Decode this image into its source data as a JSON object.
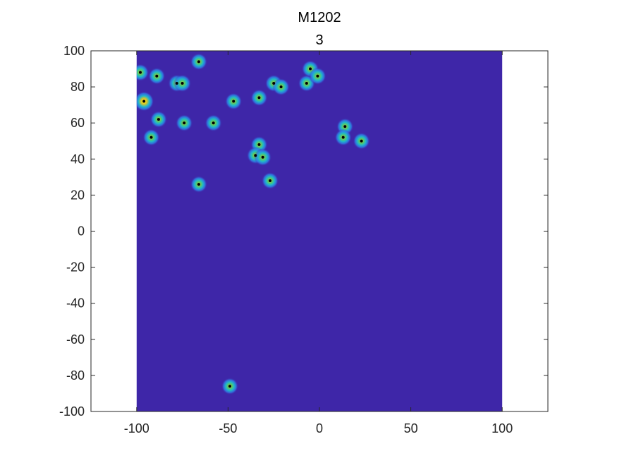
{
  "chart_data": {
    "type": "heatmap",
    "title": "M1202",
    "subtitle": "3",
    "xlabel": "",
    "ylabel": "",
    "xlim": [
      -125,
      125
    ],
    "ylim": [
      -100,
      100
    ],
    "data_extent": {
      "x": [
        -100,
        100
      ],
      "y": [
        -100,
        100
      ]
    },
    "xticks": [
      -100,
      -50,
      0,
      50,
      100
    ],
    "yticks": [
      -100,
      -80,
      -60,
      -40,
      -20,
      0,
      20,
      40,
      60,
      80,
      100
    ],
    "xtick_labels": [
      "-100",
      "-50",
      "0",
      "50",
      "100"
    ],
    "ytick_labels": [
      "-100",
      "-80",
      "-60",
      "-40",
      "-20",
      "0",
      "20",
      "40",
      "60",
      "80",
      "100"
    ],
    "background_color": "#3e26a8",
    "colormap": [
      "#3e26a8",
      "#2e7fe8",
      "#1fb9c8",
      "#5ec962",
      "#d6c22c",
      "#f9fb0e"
    ],
    "grid": false,
    "points": [
      {
        "x": -98,
        "y": 88,
        "intensity": 0.55
      },
      {
        "x": -89,
        "y": 86,
        "intensity": 0.5
      },
      {
        "x": -66,
        "y": 94,
        "intensity": 0.5
      },
      {
        "x": -96,
        "y": 72,
        "intensity": 1.0
      },
      {
        "x": -88,
        "y": 62,
        "intensity": 0.5
      },
      {
        "x": -92,
        "y": 52,
        "intensity": 0.5
      },
      {
        "x": -78,
        "y": 82,
        "intensity": 0.6
      },
      {
        "x": -75,
        "y": 82,
        "intensity": 0.6
      },
      {
        "x": -74,
        "y": 60,
        "intensity": 0.5
      },
      {
        "x": -58,
        "y": 60,
        "intensity": 0.5
      },
      {
        "x": -47,
        "y": 72,
        "intensity": 0.5
      },
      {
        "x": -33,
        "y": 74,
        "intensity": 0.5
      },
      {
        "x": -25,
        "y": 82,
        "intensity": 0.55
      },
      {
        "x": -21,
        "y": 80,
        "intensity": 0.55
      },
      {
        "x": -7,
        "y": 82,
        "intensity": 0.5
      },
      {
        "x": -5,
        "y": 90,
        "intensity": 0.55
      },
      {
        "x": -1,
        "y": 86,
        "intensity": 0.55
      },
      {
        "x": 14,
        "y": 58,
        "intensity": 0.5
      },
      {
        "x": 13,
        "y": 52,
        "intensity": 0.5
      },
      {
        "x": 23,
        "y": 50,
        "intensity": 0.5
      },
      {
        "x": -33,
        "y": 48,
        "intensity": 0.5
      },
      {
        "x": -35,
        "y": 42,
        "intensity": 0.6
      },
      {
        "x": -31,
        "y": 41,
        "intensity": 0.6
      },
      {
        "x": -27,
        "y": 28,
        "intensity": 0.5
      },
      {
        "x": -66,
        "y": 26,
        "intensity": 0.5
      },
      {
        "x": -49,
        "y": -86,
        "intensity": 0.5
      }
    ]
  }
}
